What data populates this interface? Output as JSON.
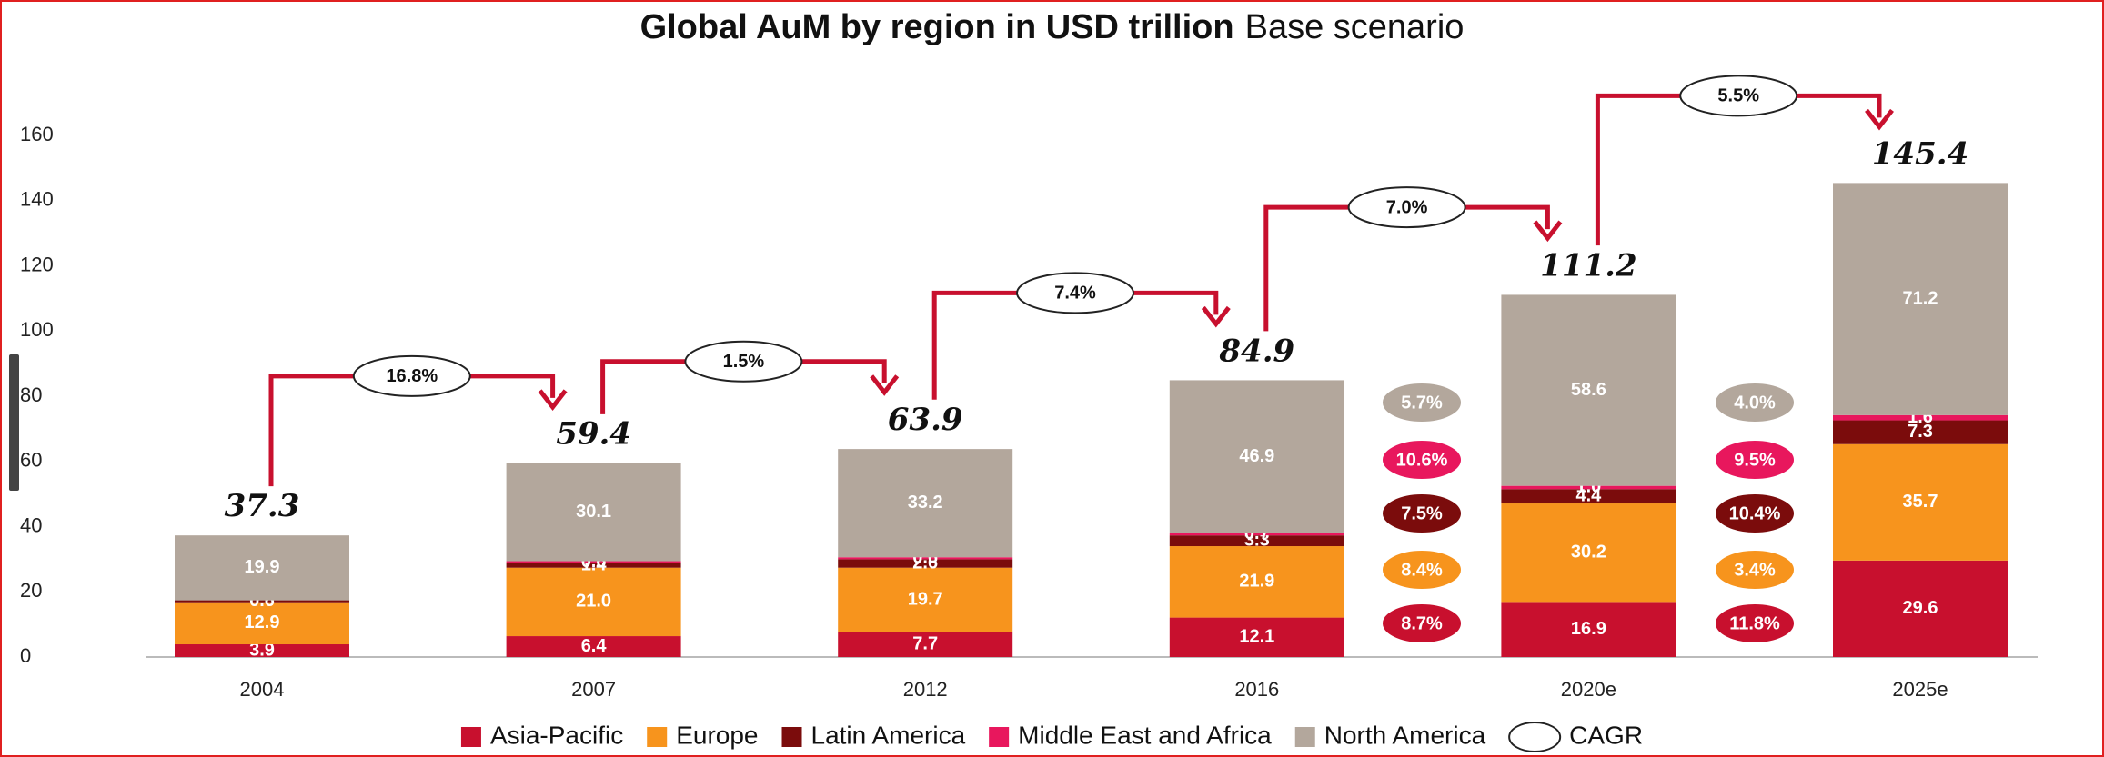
{
  "chart_data": {
    "type": "stacked_bar",
    "title": "Global AuM by region in USD trillion",
    "subtitle": "Base scenario",
    "categories": [
      "2004",
      "2007",
      "2012",
      "2016",
      "2020e",
      "2025e"
    ],
    "series": [
      {
        "name": "Asia-Pacific",
        "color": "#c8102e",
        "values": [
          3.9,
          6.4,
          7.7,
          12.1,
          16.9,
          29.6
        ],
        "value_labels": [
          "3.9",
          "6.4",
          "7.7",
          "12.1",
          "16.9",
          "29.6"
        ],
        "cagr": [
          8.7,
          11.8
        ],
        "cagr_labels": [
          "8.7%",
          "11.8%"
        ]
      },
      {
        "name": "Europe",
        "color": "#f7941d",
        "values": [
          12.9,
          21.0,
          19.7,
          21.9,
          30.2,
          35.7
        ],
        "value_labels": [
          "12.9",
          "21.0",
          "19.7",
          "21.9",
          "30.2",
          "35.7"
        ],
        "cagr": [
          8.4,
          3.4
        ],
        "cagr_labels": [
          "8.4%",
          "3.4%"
        ]
      },
      {
        "name": "Latin America",
        "color": "#7b0c0c",
        "values": [
          0.6,
          1.4,
          2.6,
          3.3,
          4.4,
          7.3
        ],
        "value_labels": [
          "0.6",
          "1.4",
          "2.6",
          "3.3",
          "4.4",
          "7.3"
        ],
        "cagr": [
          7.5,
          10.4
        ],
        "cagr_labels": [
          "7.5%",
          "10.4%"
        ]
      },
      {
        "name": "Middle East and Africa",
        "color": "#e8175d",
        "values": [
          null,
          0.6,
          0.6,
          0.7,
          1.0,
          1.6
        ],
        "value_labels": [
          null,
          "0.6",
          "0.6",
          "0.7",
          "1.0",
          "1.6"
        ],
        "cagr": [
          10.6,
          9.5
        ],
        "cagr_labels": [
          "10.6%",
          "9.5%"
        ]
      },
      {
        "name": "North America",
        "color": "#b3a79c",
        "values": [
          19.9,
          30.1,
          33.2,
          46.9,
          58.6,
          71.2
        ],
        "value_labels": [
          "19.9",
          "30.1",
          "33.2",
          "46.9",
          "58.6",
          "71.2"
        ],
        "cagr": [
          5.7,
          4.0
        ],
        "cagr_labels": [
          "5.7%",
          "4.0%"
        ]
      }
    ],
    "totals": [
      37.3,
      59.4,
      63.9,
      84.9,
      111.2,
      145.4
    ],
    "total_cagr": [
      16.8,
      1.5,
      7.4,
      7.0,
      5.5
    ],
    "total_cagr_labels": [
      "16.8%",
      "1.5%",
      "7.4%",
      "7.0%",
      "5.5%"
    ],
    "cagr_legend": "CAGR",
    "ylim": [
      0,
      160
    ],
    "yticks": [
      0,
      20,
      40,
      60,
      80,
      100,
      120,
      140,
      160
    ],
    "grid": false,
    "legend": "bottom"
  }
}
